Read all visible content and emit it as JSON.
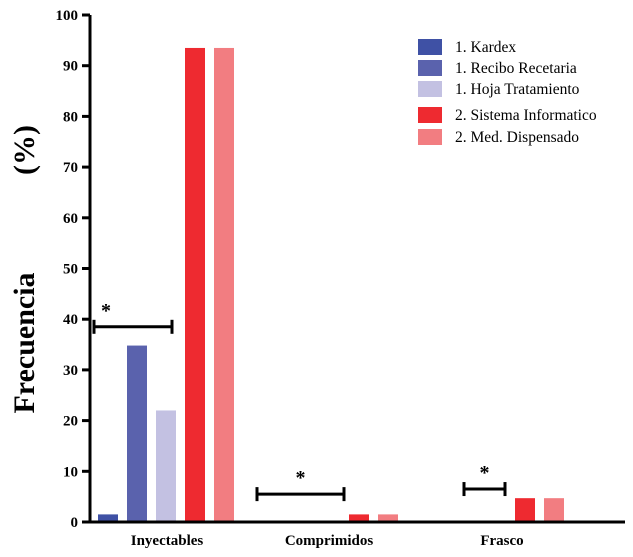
{
  "colors": {
    "kardex": "#3f51a5",
    "recibo": "#5a62ad",
    "hoja": "#c3c1e2",
    "sistema": "#ee2a30",
    "dispensado": "#f27d81",
    "axis": "#000000"
  },
  "chart_data": {
    "type": "bar",
    "title": "",
    "ylabel": "Frecuencia",
    "yunit": "(%)",
    "xlabel": "",
    "ylim": [
      0,
      100
    ],
    "yticks": [
      "0",
      "10",
      "20",
      "30",
      "40",
      "50",
      "60",
      "70",
      "80",
      "90",
      "100"
    ],
    "categories": [
      "Inyectables",
      "Comprimidos",
      "Frasco"
    ],
    "series": [
      {
        "name": "1. Kardex",
        "color": "#3f51a5",
        "values": [
          1.5,
          0,
          0
        ]
      },
      {
        "name": "1. Recibo Recetaria",
        "color": "#5a62ad",
        "values": [
          34.8,
          0,
          0
        ]
      },
      {
        "name": "1. Hoja Tratamiento",
        "color": "#c3c1e2",
        "values": [
          22.0,
          0,
          0
        ]
      },
      {
        "name": "2. Sistema Informatico",
        "color": "#ee2a30",
        "values": [
          93.5,
          1.5,
          4.7
        ]
      },
      {
        "name": "2. Med. Dispensado",
        "color": "#f27d81",
        "values": [
          93.5,
          1.5,
          4.7
        ]
      }
    ],
    "annotations": [
      {
        "category": "Inyectables",
        "text": "*",
        "y": 38.5
      },
      {
        "category": "Comprimidos",
        "text": "*",
        "y": 5.5
      },
      {
        "category": "Frasco",
        "text": "*",
        "y": 6.5
      }
    ],
    "legend": "top-right",
    "grid": false
  }
}
